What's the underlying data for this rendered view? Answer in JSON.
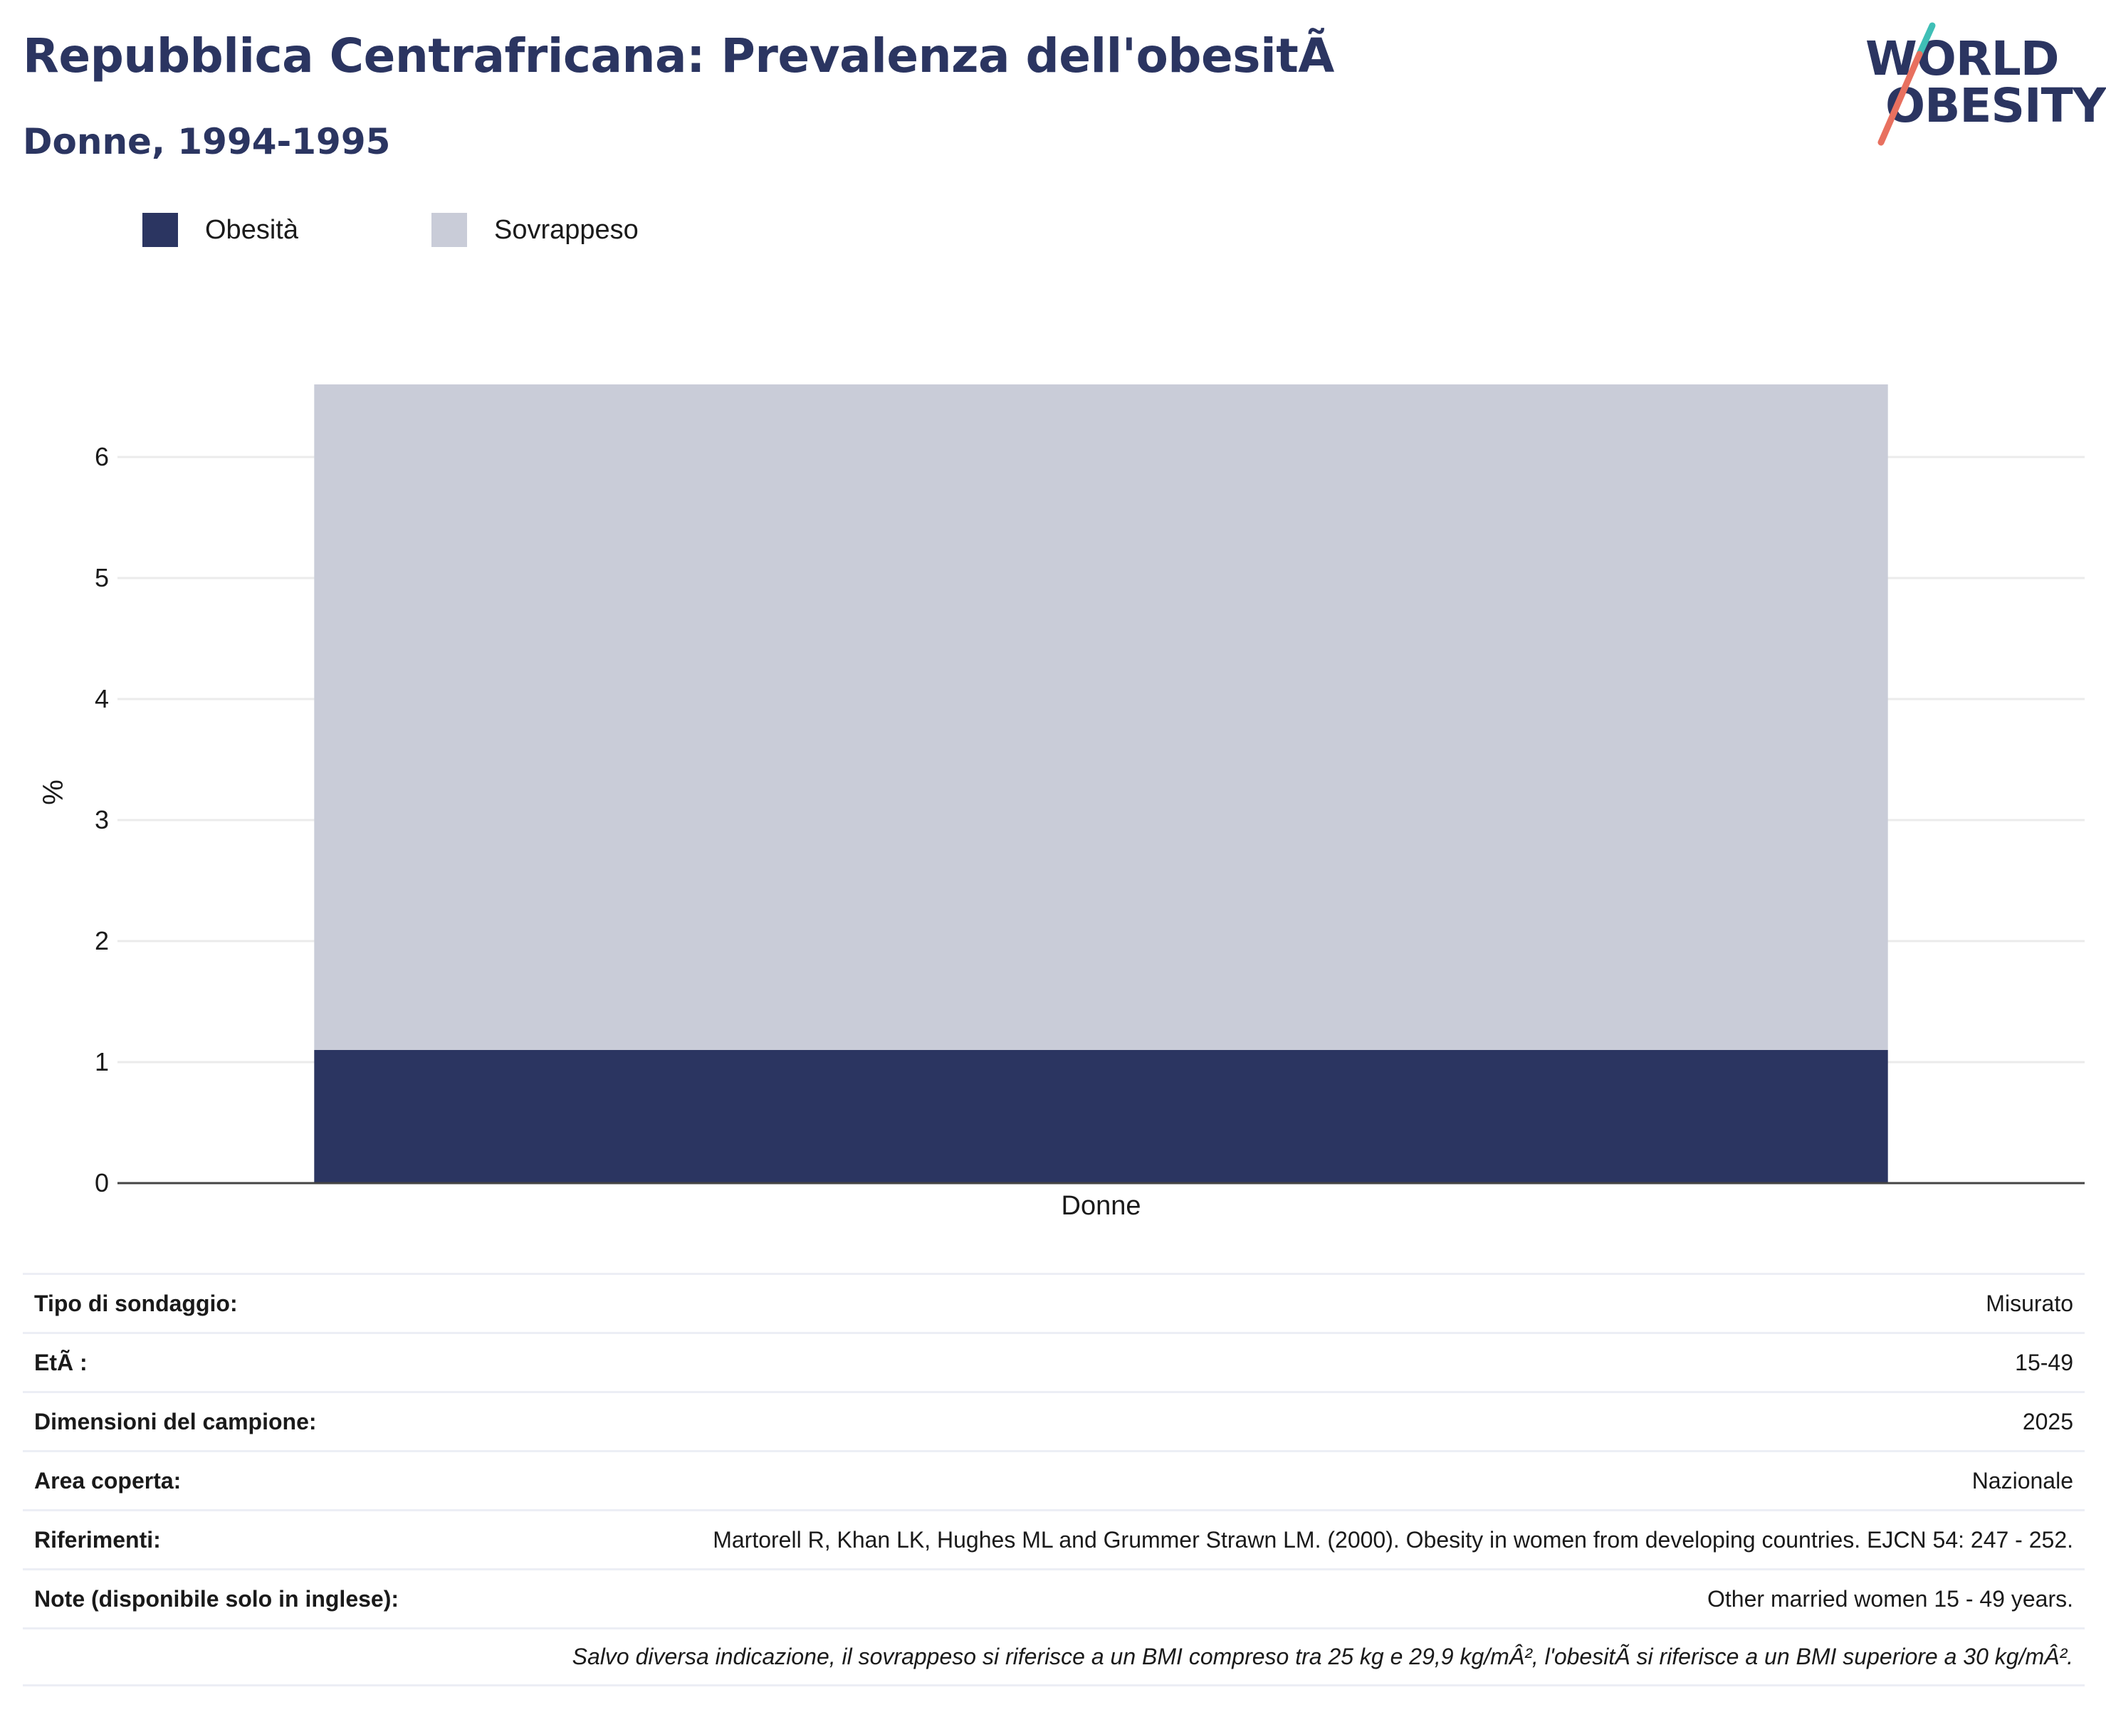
{
  "header": {
    "title": "Repubblica Centrafricana: Prevalenza dell'obesitÃ",
    "subtitle": "Donne, 1994-1995"
  },
  "logo": {
    "line1": "WORLD",
    "line2": "OBESITY",
    "colors": {
      "text": "#2b3561",
      "teal": "#3fbfb6",
      "coral": "#e8705f"
    }
  },
  "legend": [
    {
      "label": "Obesità",
      "color": "#2b3561"
    },
    {
      "label": "Sovrappeso",
      "color": "#c9ccd8"
    }
  ],
  "chart_data": {
    "type": "bar",
    "stacked": true,
    "categories": [
      "Donne"
    ],
    "series": [
      {
        "name": "Obesità",
        "values": [
          1.1
        ],
        "color": "#2b3561"
      },
      {
        "name": "Sovrappeso",
        "values": [
          5.5
        ],
        "color": "#c9ccd8"
      }
    ],
    "ylabel": "%",
    "ylim": [
      0,
      6.6
    ],
    "yticks": [
      0,
      1,
      2,
      3,
      4,
      5,
      6
    ],
    "grid": true,
    "legend_position": "top-left"
  },
  "info": {
    "rows": [
      {
        "key": "Tipo di sondaggio:",
        "value": "Misurato"
      },
      {
        "key": "EtÃ :",
        "value": "15-49"
      },
      {
        "key": "Dimensioni del campione:",
        "value": "2025"
      },
      {
        "key": "Area coperta:",
        "value": "Nazionale"
      },
      {
        "key": "Riferimenti:",
        "value": "Martorell R, Khan LK, Hughes ML and Grummer Strawn LM. (2000). Obesity in women from developing countries. EJCN 54: 247 - 252."
      },
      {
        "key": "Note (disponibile solo in inglese):",
        "value": "Other married women 15 - 49 years."
      }
    ],
    "footnote": "Salvo diversa indicazione, il sovrappeso si riferisce a un BMI compreso tra 25 kg e 29,9 kg/mÂ², l'obesitÃ  si riferisce a un BMI superiore a 30 kg/mÂ²."
  }
}
